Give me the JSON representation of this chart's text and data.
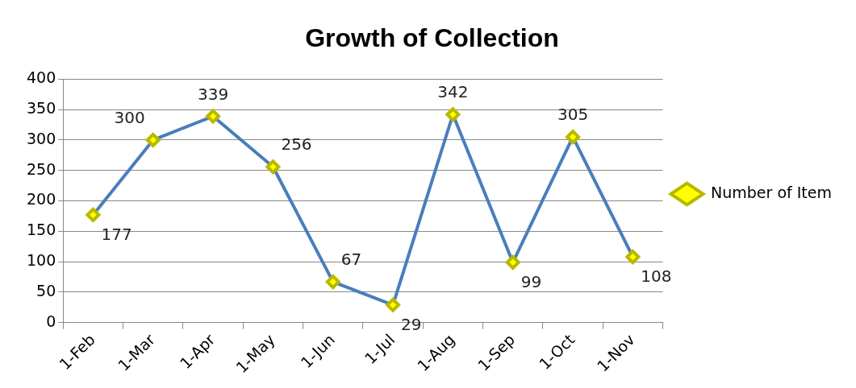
{
  "chart_data": {
    "type": "line",
    "title": "Growth of Collection",
    "categories": [
      "1-Feb",
      "1-Mar",
      "1-Apr",
      "1-May",
      "1-Jun",
      "1-Jul",
      "1-Aug",
      "1-Sep",
      "1-Oct",
      "1-Nov"
    ],
    "series": [
      {
        "name": "Number of Item",
        "color": "#4a7ebb",
        "values": [
          177,
          300,
          339,
          256,
          67,
          29,
          342,
          99,
          305,
          108
        ]
      }
    ],
    "ylim": [
      0,
      400
    ],
    "yticks": [
      0,
      50,
      100,
      150,
      200,
      250,
      300,
      350,
      400
    ],
    "grid": "y",
    "legend": "right",
    "marker": "diamond",
    "line_style": "solid",
    "data_labels": true
  }
}
